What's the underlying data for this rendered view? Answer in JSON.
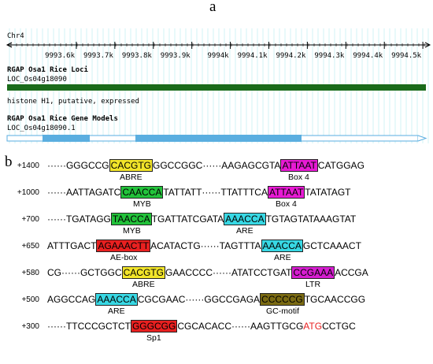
{
  "panel_a": {
    "letter": "a",
    "chromosome": "Chr4",
    "ruler_ticks": [
      "9993.6k",
      "9993.7k",
      "9993.8k",
      "9993.9k",
      "9994k",
      "9994.1k",
      "9994.2k",
      "9994.3k",
      "9994.4k",
      "9994.5k"
    ],
    "track1_title": "RGAP Osa1 Rice Loci",
    "track1_locus": "LOC_Os04g18090",
    "track1_desc": "histone H1, putative, expressed",
    "track2_title": "RGAP Osa1 Rice Gene Models",
    "track2_model": "LOC_Os04g18090.1",
    "colors": {
      "locus_bar": "#1a6b1a",
      "exon": "#5aaee0",
      "grid": "#9fe0e8",
      "ruler": "#000000"
    }
  },
  "panel_b": {
    "letter": "b",
    "colors": {
      "ABRE": "#f2e52a",
      "Box 4": "#e81ad4",
      "MYB": "#22c23a",
      "ARE": "#38d8e4",
      "AE-box": "#e82020",
      "LTR": "#d61ed0",
      "GC-motif": "#7a6a12",
      "Sp1": "#e82020",
      "start": "#e82020"
    },
    "rows": [
      {
        "pos": "+1400",
        "segments": [
          {
            "t": "······GGGCCG"
          },
          {
            "t": "CACGTG",
            "m": "ABRE"
          },
          {
            "t": "GGCCGGC······AAGAGCGTA"
          },
          {
            "t": "ATTAAT",
            "m": "Box 4"
          },
          {
            "t": "CATGGAG"
          }
        ],
        "labels": [
          {
            "text": "ABRE",
            "seg": 1
          },
          {
            "text": "Box 4",
            "seg": 3
          }
        ]
      },
      {
        "pos": "+1000",
        "segments": [
          {
            "t": "······AATTAGATC"
          },
          {
            "t": "CAACCA",
            "m": "MYB"
          },
          {
            "t": "TATTATT······TTATTTCA"
          },
          {
            "t": "ATTAAT",
            "m": "Box 4"
          },
          {
            "t": "TATATAGT"
          }
        ],
        "labels": [
          {
            "text": "MYB",
            "seg": 1
          },
          {
            "text": "Box 4",
            "seg": 3
          }
        ]
      },
      {
        "pos": "+700",
        "segments": [
          {
            "t": "······TGATAGG"
          },
          {
            "t": "TAACCA",
            "m": "MYB"
          },
          {
            "t": "TGATTATCGATA"
          },
          {
            "t": "AAACCA",
            "m": "ARE"
          },
          {
            "t": "TGTAGTATAAAGTAT"
          }
        ],
        "labels": [
          {
            "text": "MYB",
            "seg": 1
          },
          {
            "text": "ARE",
            "seg": 3
          }
        ]
      },
      {
        "pos": "+650",
        "segments": [
          {
            "t": "ATTTGACT"
          },
          {
            "t": "AGAAACTT",
            "m": "AE-box"
          },
          {
            "t": "ACATACTG······TAGTTTA"
          },
          {
            "t": "AAACCA",
            "m": "ARE"
          },
          {
            "t": "GCTCAAACT"
          }
        ],
        "labels": [
          {
            "text": "AE-box",
            "seg": 1
          },
          {
            "text": "ARE",
            "seg": 3
          }
        ]
      },
      {
        "pos": "+580",
        "segments": [
          {
            "t": "CG······GCTGGC"
          },
          {
            "t": "CACGTG",
            "m": "ABRE"
          },
          {
            "t": "GAACCCC······ATATCCTGAT"
          },
          {
            "t": "CCGAAA",
            "m": "LTR"
          },
          {
            "t": "ACCGA"
          }
        ],
        "labels": [
          {
            "text": "ABRE",
            "seg": 1
          },
          {
            "text": "LTR",
            "seg": 3
          }
        ]
      },
      {
        "pos": "+500",
        "segments": [
          {
            "t": "AGGCCAG"
          },
          {
            "t": "AAACCA",
            "m": "ARE"
          },
          {
            "t": "CGCGAAC······GGCCGAGA"
          },
          {
            "t": "CCCCCG",
            "m": "GC-motif"
          },
          {
            "t": "TGCAACCGG"
          }
        ],
        "labels": [
          {
            "text": "ARE",
            "seg": 1
          },
          {
            "text": "GC-motif",
            "seg": 3
          }
        ]
      },
      {
        "pos": "+300",
        "segments": [
          {
            "t": "······TTCCCGCTCT"
          },
          {
            "t": "GGGCGG",
            "m": "Sp1"
          },
          {
            "t": "CGCACACC······AAGTTGCG"
          },
          {
            "t": "ATG",
            "m": "start"
          },
          {
            "t": "CCTGC"
          }
        ],
        "labels": [
          {
            "text": "Sp1",
            "seg": 1
          }
        ]
      }
    ]
  }
}
